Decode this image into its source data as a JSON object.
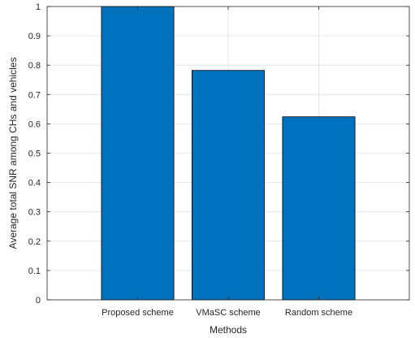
{
  "chart_data": {
    "type": "bar",
    "categories": [
      "Proposed scheme",
      "VMaSC scheme",
      "Random scheme"
    ],
    "values": [
      1.0,
      0.782,
      0.624
    ],
    "xlabel": "Methods",
    "ylabel": "Average total SNR among CHs and vehicles",
    "ylim": [
      0,
      1
    ],
    "yticks": [
      "0",
      "0.1",
      "0.2",
      "0.3",
      "0.4",
      "0.5",
      "0.6",
      "0.7",
      "0.8",
      "0.9",
      "1"
    ],
    "grid": true,
    "bar_color": "#0072BD",
    "bar_edge_color": "#000000",
    "grid_color": "#e0e0e0",
    "axis_color": "#262626"
  }
}
